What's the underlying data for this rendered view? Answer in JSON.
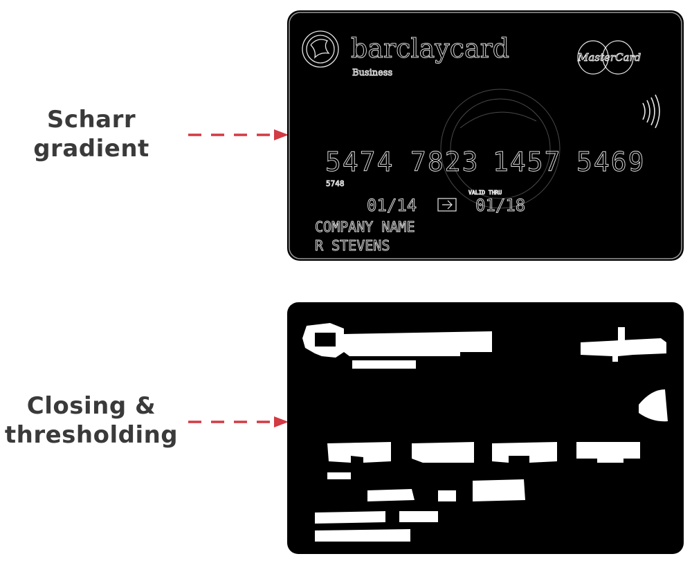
{
  "steps": [
    {
      "id": "scharr",
      "label_lines": [
        "Scharr",
        "gradient"
      ]
    },
    {
      "id": "closing",
      "label_lines": [
        "Closing &",
        "thresholding"
      ]
    }
  ],
  "card": {
    "brand": "barclaycard",
    "subtitle": "Business",
    "network": "MasterCard",
    "number_groups": [
      "5474",
      "7823",
      "1457",
      "5469"
    ],
    "small_code": "5748",
    "member_since": "01/14",
    "valid_thru": "01/18",
    "valid_label": "VALID THRU",
    "company": "COMPANY NAME",
    "cardholder": "R STEVENS"
  },
  "colors": {
    "arrow": "#d23a44",
    "label": "#3a3a3a",
    "panel": "#000000",
    "edge": "#e8e8e8",
    "blob": "#ffffff"
  }
}
